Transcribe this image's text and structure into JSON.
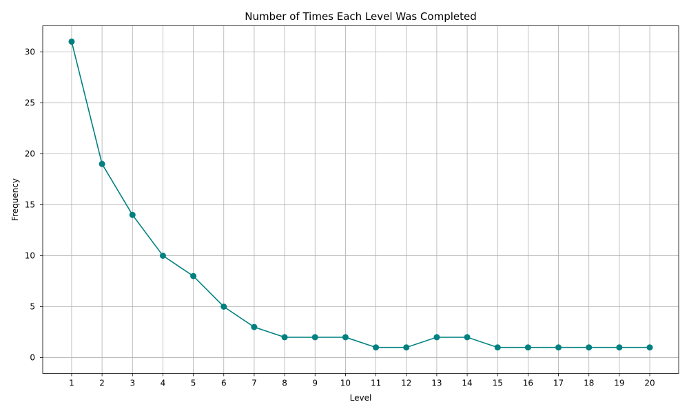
{
  "chart_data": {
    "type": "line",
    "title": "Number of Times Each Level Was Completed",
    "xlabel": "Level",
    "ylabel": "Frequency",
    "x": [
      1,
      2,
      3,
      4,
      5,
      6,
      7,
      8,
      9,
      10,
      11,
      12,
      13,
      14,
      15,
      16,
      17,
      18,
      19,
      20
    ],
    "xticks": [
      "1",
      "2",
      "3",
      "4",
      "5",
      "6",
      "7",
      "8",
      "9",
      "10",
      "11",
      "12",
      "13",
      "14",
      "15",
      "16",
      "17",
      "18",
      "19",
      "20"
    ],
    "series": [
      {
        "values": [
          31,
          19,
          14,
          10,
          8,
          5,
          3,
          2,
          2,
          2,
          1,
          1,
          2,
          2,
          1,
          1,
          1,
          1,
          1,
          1
        ],
        "color": "#008080",
        "marker": "circle"
      }
    ],
    "yticks": [
      0,
      5,
      10,
      15,
      20,
      25,
      30
    ],
    "xlim": [
      0.05,
      20.95
    ],
    "ylim": [
      -1.55,
      32.55
    ],
    "grid": true
  }
}
